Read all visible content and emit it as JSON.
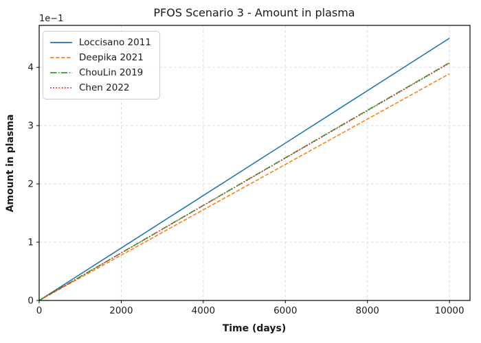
{
  "chart_data": {
    "type": "line",
    "title": "PFOS Scenario 3 - Amount in plasma",
    "xlabel": "Time (days)",
    "ylabel": "Amount in plasma",
    "y_offset_label": "1e−1",
    "xlim": [
      0,
      10500
    ],
    "ylim": [
      0,
      0.472
    ],
    "x_ticks": [
      0,
      2000,
      4000,
      6000,
      8000,
      10000
    ],
    "x_tick_labels": [
      "0",
      "2000",
      "4000",
      "6000",
      "8000",
      "10000"
    ],
    "y_ticks": [
      0,
      0.1,
      0.2,
      0.3,
      0.4
    ],
    "y_tick_labels": [
      "0",
      "1",
      "2",
      "3",
      "4"
    ],
    "grid": true,
    "grid_style": "dashed",
    "grid_color": "#dcdcdc",
    "frame_color": "#000000",
    "background_color": "#ffffff",
    "legend_position": "upper left",
    "x": [
      0,
      2000,
      4000,
      6000,
      8000,
      10000
    ],
    "series": [
      {
        "name": "Loccisano 2011",
        "color": "#1f77b4",
        "linestyle": "solid",
        "values": [
          0,
          0.09,
          0.18,
          0.27,
          0.36,
          0.45
        ]
      },
      {
        "name": "Deepika 2021",
        "color": "#ff7f0e",
        "linestyle": "dashed",
        "values": [
          0,
          0.0778,
          0.1556,
          0.2334,
          0.3112,
          0.389
        ]
      },
      {
        "name": "ChouLin 2019",
        "color": "#2ca02c",
        "linestyle": "dashdot",
        "values": [
          0,
          0.0816,
          0.1632,
          0.2448,
          0.3264,
          0.408
        ]
      },
      {
        "name": "Chen 2022",
        "color": "#d62728",
        "linestyle": "dotted",
        "values": [
          0,
          0.0814,
          0.1628,
          0.2442,
          0.3256,
          0.407
        ]
      }
    ]
  }
}
